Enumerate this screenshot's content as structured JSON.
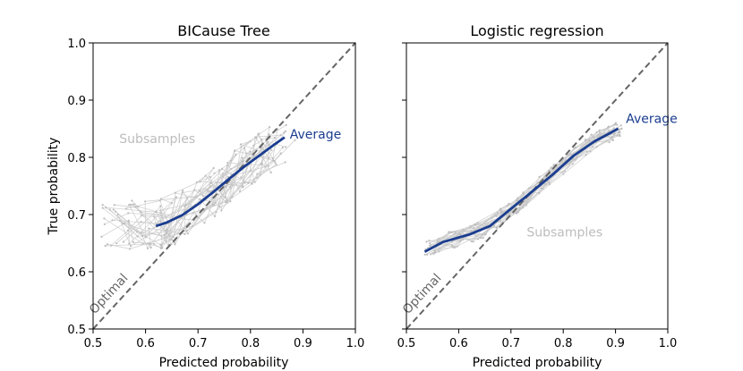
{
  "chart_data": [
    {
      "type": "line",
      "title": "BICause Tree",
      "xlabel": "Predicted probability",
      "ylabel": "True probability",
      "xlim": [
        0.5,
        1.0
      ],
      "ylim": [
        0.5,
        1.0
      ],
      "xticks": [
        "0.5",
        "0.6",
        "0.7",
        "0.8",
        "0.9",
        "1.0"
      ],
      "yticks": [
        "0.5",
        "0.6",
        "0.7",
        "0.8",
        "0.9",
        "1.0"
      ],
      "colors": {
        "average": "#1a3d8f",
        "subsamples": "#c8c8c8",
        "optimal": "#666666"
      },
      "series": [
        {
          "name": "Average",
          "x": [
            0.62,
            0.64,
            0.67,
            0.7,
            0.73,
            0.76,
            0.79,
            0.82,
            0.845,
            0.865
          ],
          "y": [
            0.68,
            0.686,
            0.699,
            0.718,
            0.74,
            0.763,
            0.785,
            0.805,
            0.822,
            0.835
          ]
        },
        {
          "name": "Optimal",
          "x": [
            0.5,
            1.0
          ],
          "y": [
            0.5,
            1.0
          ]
        }
      ],
      "subsamples_band": {
        "x_range": [
          0.55,
          0.85
        ],
        "y_range": [
          0.62,
          0.86
        ]
      },
      "annotations": [
        {
          "text": "Average",
          "x": 0.875,
          "y": 0.833
        },
        {
          "text": "Subsamples",
          "x": 0.55,
          "y": 0.825
        },
        {
          "text": "Optimal",
          "x": 0.503,
          "y": 0.525
        }
      ]
    },
    {
      "type": "line",
      "title": "Logistic regression",
      "xlabel": "Predicted probability",
      "ylabel": "",
      "xlim": [
        0.5,
        1.0
      ],
      "ylim": [
        0.5,
        1.0
      ],
      "xticks": [
        "0.5",
        "0.6",
        "0.7",
        "0.8",
        "0.9",
        "1.0"
      ],
      "yticks": [],
      "colors": {
        "average": "#1a3d8f",
        "subsamples": "#c8c8c8",
        "optimal": "#666666"
      },
      "series": [
        {
          "name": "Average",
          "x": [
            0.535,
            0.57,
            0.62,
            0.66,
            0.7,
            0.74,
            0.78,
            0.82,
            0.86,
            0.905
          ],
          "y": [
            0.635,
            0.652,
            0.665,
            0.68,
            0.71,
            0.74,
            0.77,
            0.803,
            0.828,
            0.85
          ]
        },
        {
          "name": "Optimal",
          "x": [
            0.5,
            1.0
          ],
          "y": [
            0.5,
            1.0
          ]
        }
      ],
      "subsamples_band": {
        "x_range": [
          0.55,
          0.9
        ],
        "y_range": [
          0.63,
          0.86
        ]
      },
      "annotations": [
        {
          "text": "Average",
          "x": 0.92,
          "y": 0.86
        },
        {
          "text": "Subsamples",
          "x": 0.73,
          "y": 0.662
        },
        {
          "text": "Optimal",
          "x": 0.503,
          "y": 0.525
        }
      ]
    }
  ]
}
